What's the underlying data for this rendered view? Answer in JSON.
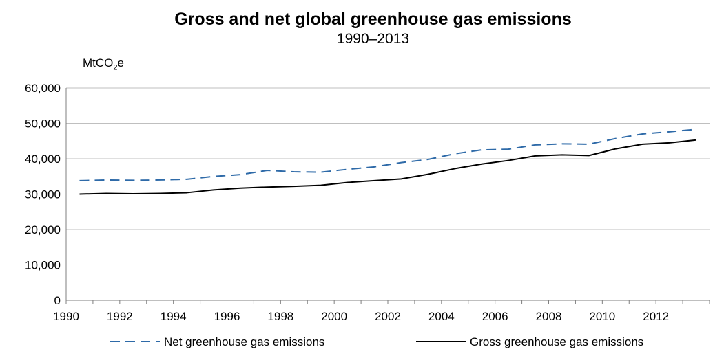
{
  "chart_data": {
    "type": "line",
    "title": "Gross and net global greenhouse gas emissions",
    "subtitle": "1990–2013",
    "ylabel": "MtCO2e",
    "ylabel_parts": {
      "main": "MtCO",
      "sub": "2",
      "tail": "e"
    },
    "xlabel": "",
    "ylim": [
      0,
      60000
    ],
    "y_ticks": [
      0,
      10000,
      20000,
      30000,
      40000,
      50000,
      60000
    ],
    "y_tick_labels": [
      "0",
      "10,000",
      "20,000",
      "30,000",
      "40,000",
      "50,000",
      "60,000"
    ],
    "x_ticks": [
      1990,
      1992,
      1994,
      1996,
      1998,
      2000,
      2002,
      2004,
      2006,
      2008,
      2010,
      2012
    ],
    "x_tick_labels": [
      "1990",
      "1992",
      "1994",
      "1996",
      "1998",
      "2000",
      "2002",
      "2004",
      "2006",
      "2008",
      "2010",
      "2012"
    ],
    "x": [
      1990,
      1991,
      1992,
      1993,
      1994,
      1995,
      1996,
      1997,
      1998,
      1999,
      2000,
      2001,
      2002,
      2003,
      2004,
      2005,
      2006,
      2007,
      2008,
      2009,
      2010,
      2011,
      2012,
      2013
    ],
    "series": [
      {
        "name": "Net greenhouse gas emissions",
        "style": "dashed",
        "color": "#2e6aa8",
        "values": [
          33800,
          34000,
          33900,
          34000,
          34200,
          35000,
          35500,
          36700,
          36300,
          36200,
          37000,
          37700,
          38900,
          39800,
          41400,
          42500,
          42700,
          43900,
          44200,
          44100,
          45700,
          47000,
          47600,
          48300
        ]
      },
      {
        "name": "Gross greenhouse gas emissions",
        "style": "solid",
        "color": "#000000",
        "values": [
          30000,
          30200,
          30100,
          30200,
          30400,
          31200,
          31700,
          32000,
          32200,
          32500,
          33300,
          33800,
          34300,
          35600,
          37200,
          38500,
          39500,
          40800,
          41100,
          40900,
          42800,
          44100,
          44500,
          45300
        ]
      }
    ],
    "grid": true,
    "legend_position": "bottom"
  }
}
